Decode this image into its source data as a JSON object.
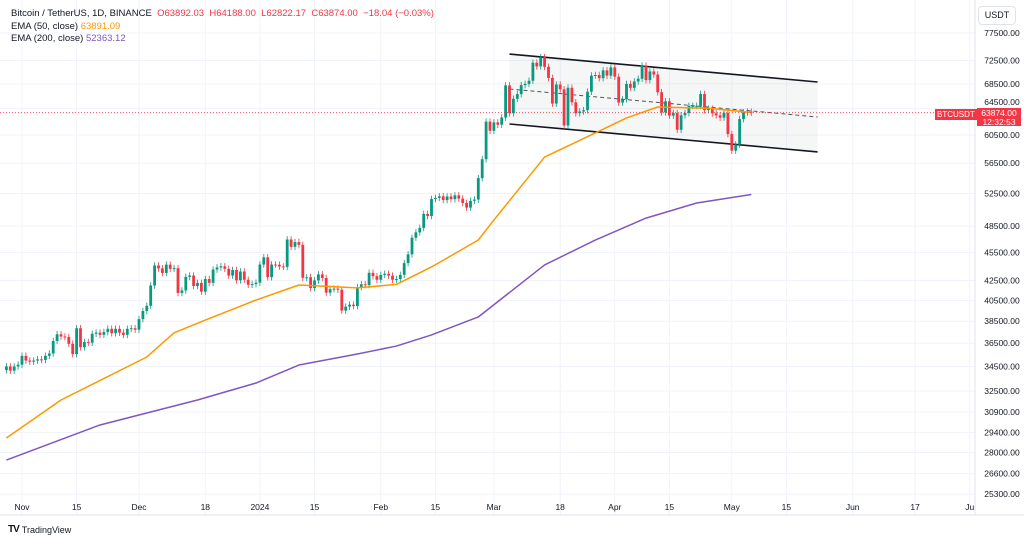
{
  "legend": {
    "symbol": "Bitcoin / TetherUS, 1D, BINANCE",
    "open": "O63892.03",
    "high": "H64188.00",
    "low": "L62822.17",
    "close": "C63874.00",
    "change": "−18.04 (−0.03%)",
    "ema50_label": "EMA (50, close)",
    "ema50_value": "63891.09",
    "ema200_label": "EMA (200, close)",
    "ema200_value": "52363.12"
  },
  "axis": {
    "currency": "USDT",
    "price_tag": "63874.00",
    "countdown": "12:32:53",
    "symbol_tag": "BTCUSDT"
  },
  "branding": {
    "logo_text": "TradingView"
  },
  "colors": {
    "up": "#089981",
    "down": "#f23645",
    "ema50": "#ff9800",
    "ema200": "#7e57c2",
    "channel": "#131722"
  },
  "chart_data": {
    "type": "candlestick",
    "y_scale": "log",
    "ylim": [
      25300,
      77500
    ],
    "grid": true,
    "y_ticks": [
      77500,
      72500,
      68500,
      64500,
      60500,
      56500,
      52500,
      48500,
      45500,
      42500,
      40500,
      38500,
      36500,
      34500,
      32500,
      30900,
      29400,
      28000,
      26600,
      25300
    ],
    "x_ticks": [
      {
        "label": "Nov",
        "date": "2023-11-01"
      },
      {
        "label": "15",
        "date": "2023-11-15"
      },
      {
        "label": "Dec",
        "date": "2023-12-01"
      },
      {
        "label": "18",
        "date": "2023-12-18"
      },
      {
        "label": "2024",
        "date": "2024-01-01"
      },
      {
        "label": "15",
        "date": "2024-01-15"
      },
      {
        "label": "Feb",
        "date": "2024-02-01"
      },
      {
        "label": "15",
        "date": "2024-02-15"
      },
      {
        "label": "Mar",
        "date": "2024-03-01"
      },
      {
        "label": "18",
        "date": "2024-03-18"
      },
      {
        "label": "Apr",
        "date": "2024-04-01"
      },
      {
        "label": "15",
        "date": "2024-04-15"
      },
      {
        "label": "May",
        "date": "2024-05-01"
      },
      {
        "label": "15",
        "date": "2024-05-15"
      },
      {
        "label": "Jun",
        "date": "2024-06-01"
      },
      {
        "label": "17",
        "date": "2024-06-17"
      },
      {
        "label": "Ju",
        "date": "2024-07-01"
      }
    ],
    "candles_start": "2023-10-28",
    "first_open": 34200,
    "closes": [
      34500,
      34150,
      34500,
      34650,
      35400,
      35000,
      34900,
      35000,
      35100,
      35050,
      35400,
      35600,
      36700,
      37300,
      37100,
      37050,
      36450,
      35550,
      37850,
      36150,
      36600,
      36550,
      37350,
      37450,
      37250,
      37500,
      37800,
      37400,
      37800,
      37450,
      37250,
      37800,
      37850,
      37720,
      38700,
      39470,
      39970,
      41990,
      44080,
      43770,
      43290,
      44170,
      43720,
      43790,
      41240,
      41490,
      42880,
      43020,
      41940,
      42260,
      41370,
      42660,
      42260,
      43650,
      43870,
      43990,
      43720,
      43010,
      43600,
      42520,
      43440,
      42580,
      42070,
      42140,
      42280,
      44180,
      44960,
      42850,
      44180,
      44160,
      43970,
      43930,
      46950,
      46120,
      46660,
      46340,
      42780,
      42840,
      41730,
      42510,
      43140,
      42760,
      41270,
      41620,
      41670,
      41560,
      39510,
      39890,
      40080,
      39940,
      41820,
      42120,
      42030,
      43300,
      42950,
      42580,
      43080,
      43200,
      43010,
      42580,
      42660,
      43090,
      44340,
      45290,
      47150,
      47770,
      48290,
      49960,
      49700,
      51800,
      51940,
      52140,
      51660,
      52120,
      51780,
      52260,
      51850,
      51300,
      50730,
      51570,
      51730,
      54490,
      57050,
      62500,
      61130,
      62390,
      62030,
      63130,
      68250,
      63790,
      66070,
      66820,
      68290,
      68500,
      69020,
      72100,
      71470,
      73070,
      71390,
      69500,
      65300,
      68390,
      67600,
      61920,
      67850,
      65500,
      63780,
      64060,
      64260,
      67210,
      69890,
      69990,
      69450,
      70780,
      69880,
      71290,
      69700,
      65460,
      65970,
      68490,
      67840,
      68900,
      69360,
      71620,
      69140,
      70590,
      70060,
      67120,
      63920,
      65660,
      63420,
      63810,
      61280,
      63470,
      63820,
      64940,
      64940,
      64940,
      66830,
      64280,
      64490,
      63770,
      63460,
      63110,
      63840,
      60640,
      58250,
      59120,
      62890,
      63890,
      64030,
      63874
    ],
    "series": [
      {
        "name": "EMA (50, close)",
        "points": [
          [
            "2023-10-28",
            29000
          ],
          [
            "2023-11-11",
            31800
          ],
          [
            "2023-12-03",
            35300
          ],
          [
            "2023-12-10",
            37430
          ],
          [
            "2023-12-18",
            38610
          ],
          [
            "2023-12-31",
            40530
          ],
          [
            "2024-01-11",
            42040
          ],
          [
            "2024-01-26",
            41750
          ],
          [
            "2024-02-05",
            42100
          ],
          [
            "2024-02-14",
            43920
          ],
          [
            "2024-02-26",
            46890
          ],
          [
            "2024-03-01",
            49220
          ],
          [
            "2024-03-14",
            57350
          ],
          [
            "2024-03-27",
            60800
          ],
          [
            "2024-04-04",
            63060
          ],
          [
            "2024-04-12",
            64760
          ],
          [
            "2024-04-25",
            64570
          ],
          [
            "2024-05-06",
            63891
          ]
        ]
      },
      {
        "name": "EMA (200, close)",
        "points": [
          [
            "2023-10-28",
            27490
          ],
          [
            "2023-11-21",
            29930
          ],
          [
            "2023-12-16",
            31800
          ],
          [
            "2023-12-31",
            33140
          ],
          [
            "2024-01-11",
            34620
          ],
          [
            "2024-01-26",
            35560
          ],
          [
            "2024-02-05",
            36250
          ],
          [
            "2024-02-14",
            37240
          ],
          [
            "2024-02-26",
            38900
          ],
          [
            "2024-03-14",
            44140
          ],
          [
            "2024-03-27",
            46890
          ],
          [
            "2024-04-09",
            49450
          ],
          [
            "2024-04-22",
            51300
          ],
          [
            "2024-05-06",
            52363
          ]
        ]
      }
    ],
    "channel": {
      "upper": [
        [
          "2024-03-05",
          73640
        ],
        [
          "2024-05-23",
          68810
        ]
      ],
      "middle": [
        [
          "2024-03-05",
          67650
        ],
        [
          "2024-05-23",
          63210
        ]
      ],
      "lower": [
        [
          "2024-03-05",
          62140
        ],
        [
          "2024-05-23",
          58070
        ]
      ]
    },
    "last_price": 63874
  }
}
